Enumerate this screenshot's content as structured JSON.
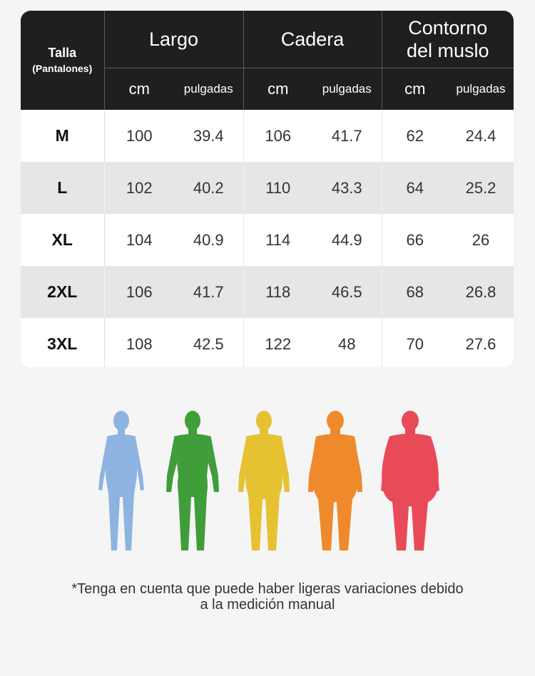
{
  "table": {
    "size_header": "Talla",
    "size_subheader": "(Pantalones)",
    "groups": [
      {
        "label_line1": "Largo",
        "label_line2": ""
      },
      {
        "label_line1": "Cadera",
        "label_line2": ""
      },
      {
        "label_line1": "Contorno",
        "label_line2": "del muslo"
      }
    ],
    "unit_cm": "cm",
    "unit_in": "pulgadas",
    "rows": [
      {
        "size": "M",
        "vals": [
          "100",
          "39.4",
          "106",
          "41.7",
          "62",
          "24.4"
        ]
      },
      {
        "size": "L",
        "vals": [
          "102",
          "40.2",
          "110",
          "43.3",
          "64",
          "25.2"
        ]
      },
      {
        "size": "XL",
        "vals": [
          "104",
          "40.9",
          "114",
          "44.9",
          "66",
          "26"
        ]
      },
      {
        "size": "2XL",
        "vals": [
          "106",
          "41.7",
          "118",
          "46.5",
          "68",
          "26.8"
        ]
      },
      {
        "size": "3XL",
        "vals": [
          "108",
          "42.5",
          "122",
          "48",
          "70",
          "27.6"
        ]
      }
    ]
  },
  "figures": [
    {
      "color": "#8db4e0",
      "build": "slim"
    },
    {
      "color": "#3f9e3a",
      "build": "athletic"
    },
    {
      "color": "#e6c233",
      "build": "average"
    },
    {
      "color": "#ef8a2c",
      "build": "heavy"
    },
    {
      "color": "#e84a57",
      "build": "obese"
    }
  ],
  "note": {
    "line1": "*Tenga en cuenta que puede haber ligeras variaciones debido",
    "line2": "a la medición manual"
  }
}
